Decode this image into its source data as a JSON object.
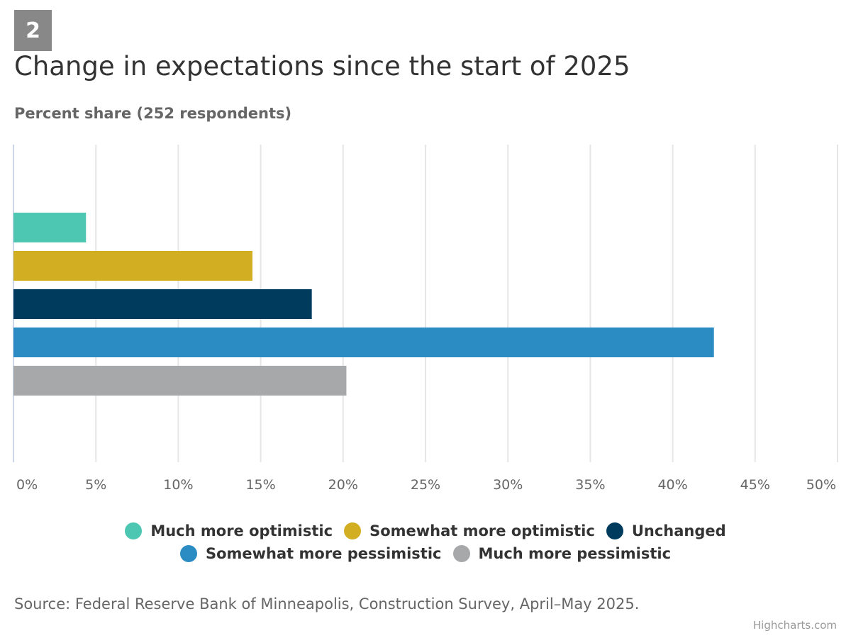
{
  "badge": "2",
  "chart_data": {
    "type": "bar",
    "orientation": "horizontal",
    "title": "Change in expectations since the start of 2025",
    "subtitle": "Percent share (252 respondents)",
    "xlim": [
      0,
      50
    ],
    "ticks": [
      0,
      5,
      10,
      15,
      20,
      25,
      30,
      35,
      40,
      45,
      50
    ],
    "tick_suffix": "%",
    "grid": true,
    "legend_position": "bottom",
    "series": [
      {
        "name": "Much more optimistic",
        "value": 4.4,
        "color": "#4dc6b2"
      },
      {
        "name": "Somewhat more optimistic",
        "value": 14.5,
        "color": "#d1ae22"
      },
      {
        "name": "Unchanged",
        "value": 18.1,
        "color": "#003a5d"
      },
      {
        "name": "Somewhat more pessimistic",
        "value": 42.5,
        "color": "#2b8cc4"
      },
      {
        "name": "Much more pessimistic",
        "value": 20.2,
        "color": "#a7a8aa"
      }
    ]
  },
  "source": "Source: Federal Reserve Bank of Minneapolis, Construction Survey, April–May 2025.",
  "credits": "Highcharts.com"
}
